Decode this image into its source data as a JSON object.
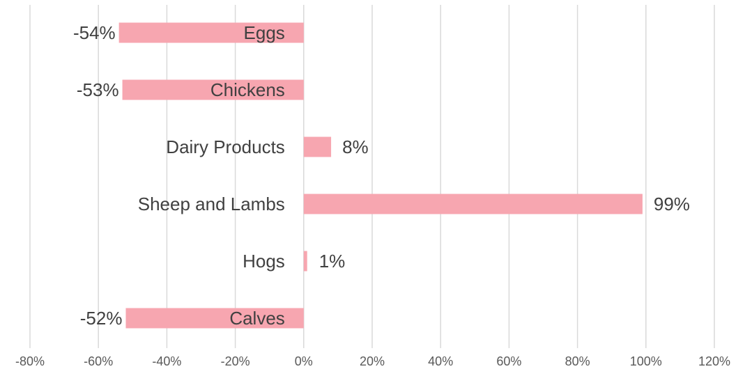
{
  "chart_data": {
    "type": "bar",
    "orientation": "horizontal",
    "title": "",
    "xlabel": "",
    "ylabel": "",
    "categories": [
      "Eggs",
      "Chickens",
      "Dairy Products",
      "Sheep and Lambs",
      "Hogs",
      "Calves"
    ],
    "values": [
      -0.54,
      -0.53,
      0.08,
      0.99,
      0.01,
      -0.52
    ],
    "value_labels": [
      "-54%",
      "-53%",
      "8%",
      "99%",
      "1%",
      "-52%"
    ],
    "xlim": [
      -0.8,
      1.2
    ],
    "x_ticks": [
      -0.8,
      -0.6,
      -0.4,
      -0.2,
      0,
      0.2,
      0.4,
      0.6,
      0.8,
      1.0,
      1.2
    ],
    "x_tick_labels": [
      "-80%",
      "-60%",
      "-40%",
      "-20%",
      "0%",
      "20%",
      "40%",
      "60%",
      "80%",
      "100%",
      "120%"
    ],
    "grid": "vertical",
    "legend": "none",
    "colors": {
      "bar": "#f7a6b0",
      "grid": "#d9d9d9",
      "label_text": "#404040",
      "tick_text": "#595959"
    }
  }
}
